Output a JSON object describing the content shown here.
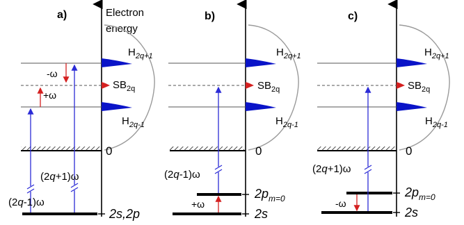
{
  "panels": [
    {
      "label": "a)",
      "axis_label_line1": "Electron",
      "axis_label_line2": "energy",
      "h_upper": {
        "base": "H",
        "sub": "2q+1"
      },
      "sideband": {
        "base": "SB",
        "sub": "2q"
      },
      "h_lower": {
        "base": "H",
        "sub": "2q-1"
      },
      "zero": "0",
      "ground_label": "2s,2p",
      "minus_omega": "-ω",
      "plus_omega": "+ω",
      "harm_lower": {
        "pre": "(2",
        "q": "q",
        "post": "-1)ω"
      },
      "harm_upper": {
        "pre": "(2",
        "q": "q",
        "post": "+1)ω"
      }
    },
    {
      "label": "b)",
      "h_upper": {
        "base": "H",
        "sub": "2q+1"
      },
      "sideband": {
        "base": "SB",
        "sub": "2q"
      },
      "h_lower": {
        "base": "H",
        "sub": "2q-1"
      },
      "zero": "0",
      "excited_label": {
        "base": "2p",
        "sub": "m=0"
      },
      "ground_label": "2s",
      "plus_omega": "+ω",
      "harm": {
        "pre": "(2",
        "q": "q",
        "post": "-1)ω"
      }
    },
    {
      "label": "c)",
      "h_upper": {
        "base": "H",
        "sub": "2q+1"
      },
      "sideband": {
        "base": "SB",
        "sub": "2q"
      },
      "h_lower": {
        "base": "H",
        "sub": "2q-1"
      },
      "zero": "0",
      "excited_label": {
        "base": "2p",
        "sub": "m=0"
      },
      "ground_label": "2s",
      "minus_omega": "-ω",
      "harm": {
        "pre": "(2",
        "q": "q",
        "post": "+1)ω"
      }
    }
  ],
  "colors": {
    "photon_arrow": "#2b2bd6",
    "ir_arrow": "#d42020",
    "harmonic_peak": "#0a14c8",
    "sideband_peak": "#d42020",
    "envelope": "#9a9a9a",
    "dashed_level": "#555555"
  }
}
